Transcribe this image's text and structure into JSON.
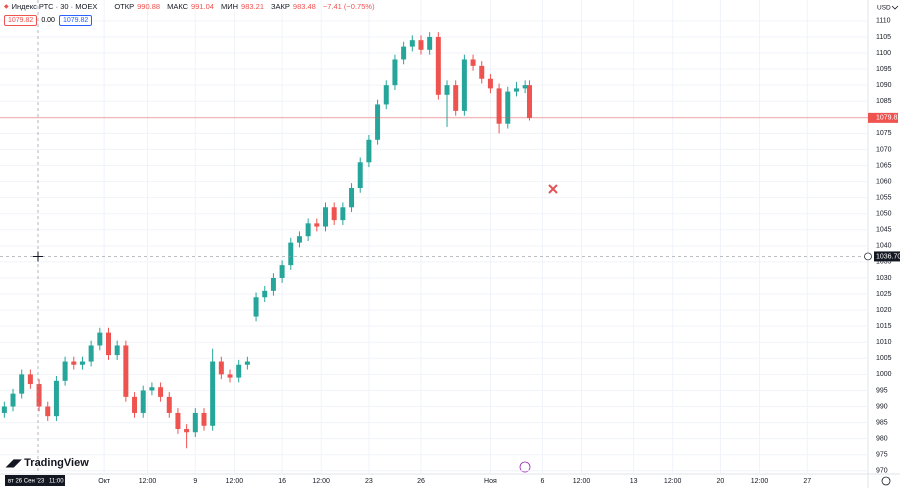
{
  "chart_data": {
    "type": "candlestick",
    "instrument": "Индекс РТС · 30 · MOEX",
    "ohlc_labels": [
      "ОТКР",
      "МАКС",
      "МИН",
      "ЗАКР"
    ],
    "ohlc_values": [
      "990.88",
      "991.04",
      "983.21",
      "983.48"
    ],
    "change": "−7.41 (−0.75%)",
    "indicator_values": [
      "1079.82",
      "0.00",
      "1079.82"
    ],
    "currency": "USD",
    "brand": "TradingView",
    "up_color": "#26a69a",
    "down_color": "#ef5350",
    "x": [
      0,
      2,
      4,
      6,
      8,
      10,
      12,
      14,
      16,
      18,
      20,
      22,
      24,
      26,
      28,
      30,
      32,
      34,
      36,
      38,
      40,
      42,
      44,
      46,
      48,
      50,
      52,
      54,
      56,
      58,
      60,
      62,
      64,
      66,
      68,
      70,
      72,
      74,
      76,
      78,
      80,
      82,
      84,
      86,
      88,
      90,
      92,
      94,
      96,
      98,
      100,
      102,
      104,
      106,
      108,
      110,
      112,
      114,
      116,
      118,
      120,
      121
    ],
    "open": [
      988,
      990,
      994,
      1000,
      997,
      990,
      987,
      998,
      1004,
      1003,
      1004,
      1009,
      1013,
      1006,
      1009,
      993,
      988,
      995,
      996,
      993,
      988,
      983,
      982,
      988,
      984,
      1004,
      1000,
      999,
      1003,
      1018,
      1024,
      1026,
      1030,
      1034,
      1041,
      1043,
      1047,
      1046,
      1052,
      1048,
      1052,
      1058,
      1066,
      1073,
      1084,
      1090,
      1098,
      1102,
      1104,
      1101,
      1105,
      1087,
      1090,
      1082,
      1098,
      1096,
      1092,
      1089,
      1078,
      1088,
      1089,
      1090
    ],
    "high": [
      991.5,
      995.5,
      1001.5,
      1001.5,
      998.5,
      991.5,
      999.5,
      1005.5,
      1005.5,
      1005.5,
      1010.5,
      1014.5,
      1014.5,
      1010.5,
      1010.5,
      994.5,
      996.5,
      997.5,
      997.5,
      994.5,
      989.5,
      984.5,
      989.5,
      989.5,
      1008,
      1005.5,
      1001.5,
      1004.5,
      1005.5,
      1025.5,
      1027.5,
      1031.5,
      1035.5,
      1042.5,
      1044.5,
      1048.5,
      1048.5,
      1053.5,
      1053.5,
      1053.5,
      1059.5,
      1067.5,
      1074.5,
      1085.5,
      1091.5,
      1099.5,
      1103.5,
      1105.5,
      1105.5,
      1106.5,
      1106.5,
      1091.5,
      1091.5,
      1099.5,
      1099.5,
      1097.5,
      1093.5,
      1090.5,
      1089.5,
      1091,
      1091.5,
      1091.5
    ],
    "low": [
      986.5,
      988.5,
      992.5,
      995.5,
      988.5,
      985.5,
      985.5,
      996.5,
      1001.5,
      1001.5,
      1002.5,
      1007.5,
      1004.5,
      1004.5,
      991.5,
      986.5,
      986.5,
      993.5,
      991.5,
      986.5,
      981.5,
      977,
      980.5,
      982.5,
      982.5,
      998.5,
      997.5,
      997.5,
      1001.5,
      1016.5,
      1022.5,
      1024.5,
      1028.5,
      1032.5,
      1039.5,
      1041.5,
      1044.5,
      1044.5,
      1046.5,
      1046.5,
      1050.5,
      1056.5,
      1064.5,
      1071.5,
      1082.5,
      1088.5,
      1096.5,
      1100.5,
      1099.5,
      1099.5,
      1085.5,
      1077,
      1080.5,
      1080.5,
      1094.5,
      1090.5,
      1087.5,
      1075,
      1076.5,
      1086.5,
      1087.5,
      1079
    ],
    "close": [
      990,
      994,
      1000,
      997,
      990,
      987,
      998,
      1004,
      1003,
      1004,
      1009,
      1013,
      1006,
      1009,
      993,
      988,
      995,
      996,
      993,
      988,
      983,
      982,
      988,
      984,
      1004,
      1000,
      999,
      1003,
      1004,
      1024,
      1026,
      1030,
      1034,
      1041,
      1043,
      1047,
      1046,
      1052,
      1048,
      1052,
      1058,
      1066,
      1073,
      1084,
      1090,
      1098,
      1102,
      1104,
      1101,
      1105,
      1087,
      1090,
      1082,
      1098,
      1096,
      1092,
      1089,
      1078,
      1088,
      1089,
      1090,
      1079.82
    ],
    "xlim": [
      -1,
      199
    ],
    "xticks": [
      {
        "value": 23,
        "label": "Окт"
      },
      {
        "value": 33,
        "label": "12:00"
      },
      {
        "value": 44,
        "label": "9"
      },
      {
        "value": 53,
        "label": "12:00"
      },
      {
        "value": 64,
        "label": "16"
      },
      {
        "value": 73,
        "label": "12:00"
      },
      {
        "value": 84,
        "label": "23"
      },
      {
        "value": 96,
        "label": "26"
      },
      {
        "value": 112,
        "label": "Ноя"
      },
      {
        "value": 124,
        "label": "6"
      },
      {
        "value": 133,
        "label": "12:00"
      },
      {
        "value": 145,
        "label": "13"
      },
      {
        "value": 154,
        "label": "12:00"
      },
      {
        "value": 165,
        "label": "20"
      },
      {
        "value": 174,
        "label": "12:00"
      },
      {
        "value": 185,
        "label": "27"
      }
    ],
    "ylim": [
      969,
      1116.5
    ],
    "yticks": [
      970,
      975,
      980,
      985,
      990,
      995,
      1000,
      1005,
      1010,
      1015,
      1020,
      1025,
      1030,
      1035,
      1040,
      1045,
      1050,
      1055,
      1060,
      1065,
      1070,
      1075,
      1080,
      1085,
      1090,
      1095,
      1100,
      1105,
      1110
    ],
    "crosshair_price": {
      "value": 1036.7,
      "label": "1036.70"
    },
    "crosshair_date": "вт 26 Сен '23",
    "crosshair_time": "11:00",
    "grid": true
  }
}
